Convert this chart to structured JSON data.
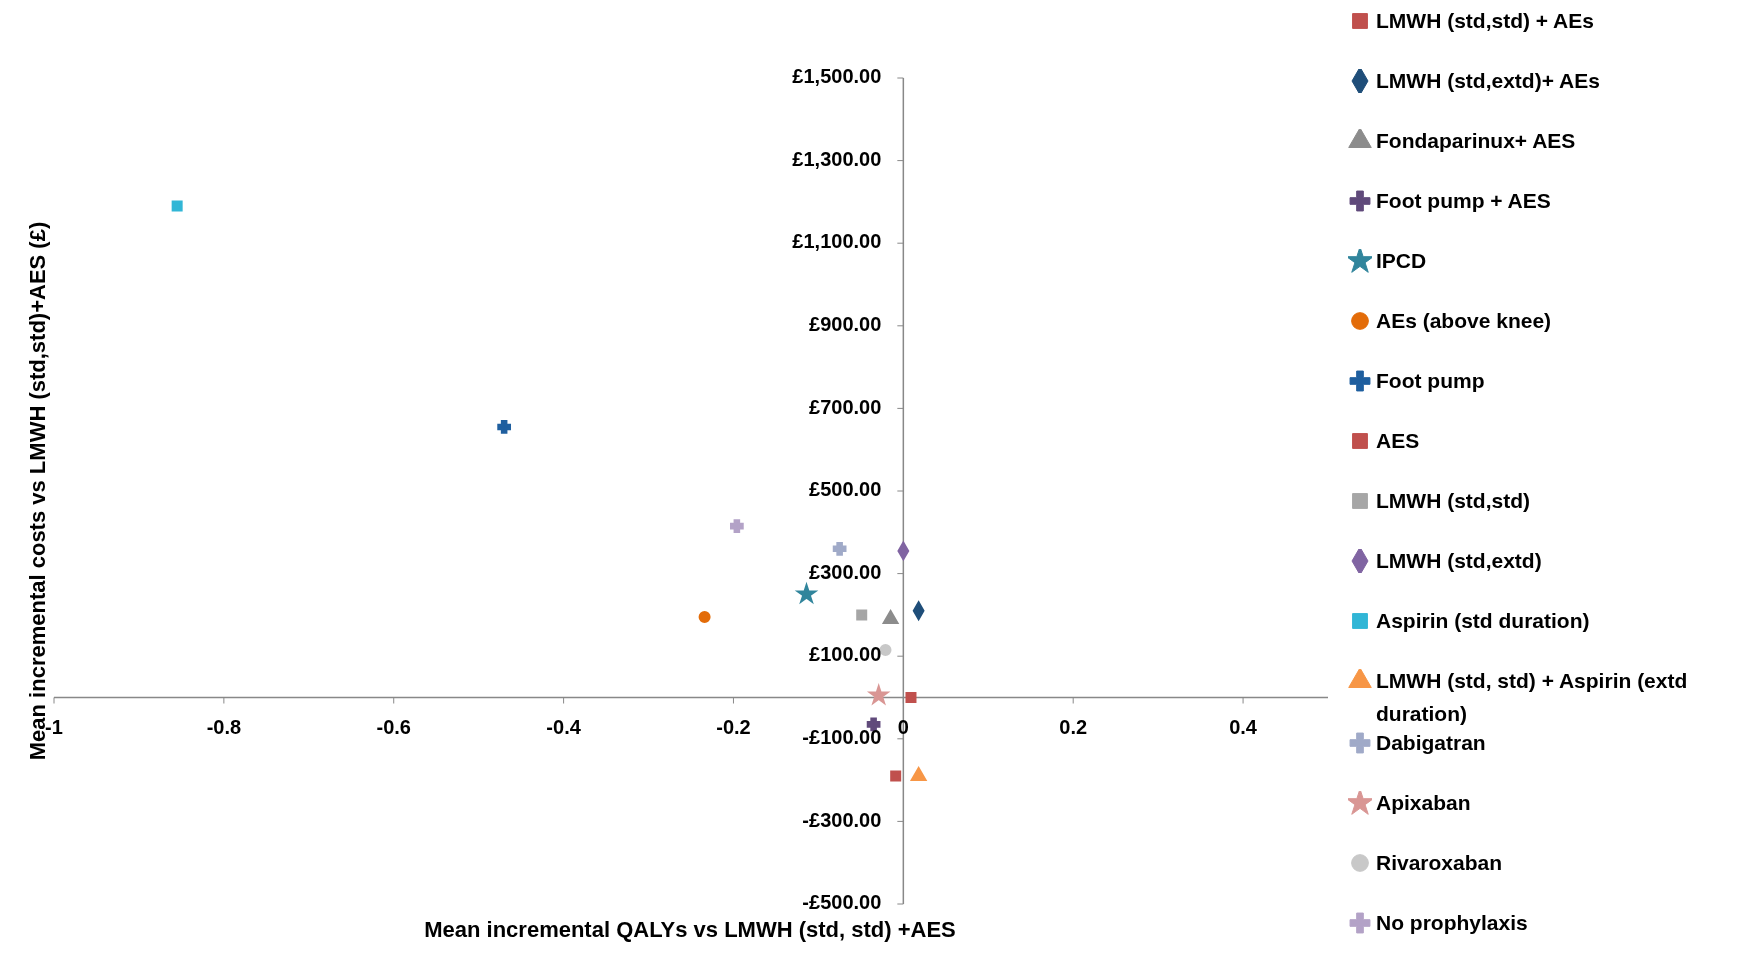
{
  "chart_data": {
    "type": "scatter",
    "xlabel": "Mean incremental QALYs vs LMWH (std, std) +AES",
    "ylabel": "Mean incremental costs vs LMWH (std,std)+AES (£)",
    "xlim": [
      -1,
      0.5
    ],
    "xticks": [
      -1,
      -0.8,
      -0.6,
      -0.4,
      -0.2,
      {
        "value": 0,
        "label": "0"
      },
      0.2,
      0.4
    ],
    "ylim": [
      -500,
      1500
    ],
    "yticks": [
      {
        "value": -500,
        "label": "-£500.00"
      },
      {
        "value": -300,
        "label": "-£300.00"
      },
      {
        "value": -100,
        "label": "-£100.00"
      },
      {
        "value": 100,
        "label": "£100.00"
      },
      {
        "value": 300,
        "label": "£300.00"
      },
      {
        "value": 500,
        "label": "£500.00"
      },
      {
        "value": 700,
        "label": "£700.00"
      },
      {
        "value": 900,
        "label": "£900.00"
      },
      {
        "value": 1100,
        "label": "£1,100.00"
      },
      {
        "value": 1300,
        "label": "£1,300.00"
      },
      {
        "value": 1500,
        "label": "£1,500.00"
      }
    ],
    "legend": "top right",
    "series": [
      {
        "name": "LMWH (std,std) + AEs",
        "color": "#c0504d",
        "marker": "square",
        "x": [
          0.009
        ],
        "values": [
          0
        ]
      },
      {
        "name": "LMWH (std,extd)+ AEs",
        "color": "#1f4e79",
        "marker": "diamond",
        "x": [
          0.018
        ],
        "values": [
          210
        ]
      },
      {
        "name": "Fondaparinux+ AES",
        "color": "#8c8c8c",
        "marker": "triangle",
        "x": [
          -0.015
        ],
        "values": [
          190
        ]
      },
      {
        "name": "Foot pump + AES",
        "color": "#604a7b",
        "marker": "cross",
        "x": [
          -0.035
        ],
        "values": [
          -65
        ]
      },
      {
        "name": "IPCD",
        "color": "#31859c",
        "marker": "star",
        "x": [
          -0.114
        ],
        "values": [
          250
        ]
      },
      {
        "name": "AEs (above knee)",
        "color": "#e36c09",
        "marker": "circle",
        "x": [
          -0.234
        ],
        "values": [
          195
        ]
      },
      {
        "name": "Foot pump",
        "color": "#1f5f9f",
        "marker": "cross",
        "x": [
          -0.47
        ],
        "values": [
          655
        ]
      },
      {
        "name": "AES",
        "color": "#c0504d",
        "marker": "square",
        "x": [
          -0.009
        ],
        "values": [
          -190
        ]
      },
      {
        "name": "LMWH (std,std)",
        "color": "#a6a6a6",
        "marker": "square",
        "x": [
          -0.049
        ],
        "values": [
          200
        ]
      },
      {
        "name": "LMWH (std,extd)",
        "color": "#8064a2",
        "marker": "diamond",
        "x": [
          0
        ],
        "values": [
          355
        ]
      },
      {
        "name": "Aspirin (std duration)",
        "color": "#31b6d6",
        "marker": "square",
        "x": [
          -0.855
        ],
        "values": [
          1190
        ]
      },
      {
        "name": "LMWH (std, std) + Aspirin (extd duration)",
        "color": "#f79646",
        "marker": "triangle",
        "x": [
          0.018
        ],
        "values": [
          -190
        ]
      },
      {
        "name": "Dabigatran",
        "color": "#a0aac8",
        "marker": "cross",
        "x": [
          -0.075
        ],
        "values": [
          360
        ]
      },
      {
        "name": "Apixaban",
        "color": "#d99694",
        "marker": "star",
        "x": [
          -0.029
        ],
        "values": [
          5
        ]
      },
      {
        "name": "Rivaroxaban",
        "color": "#c8c8c8",
        "marker": "circle",
        "x": [
          -0.021
        ],
        "values": [
          115
        ]
      },
      {
        "name": "No prophylaxis",
        "color": "#b3a2c7",
        "marker": "cross",
        "x": [
          -0.196
        ],
        "values": [
          415
        ]
      }
    ]
  }
}
